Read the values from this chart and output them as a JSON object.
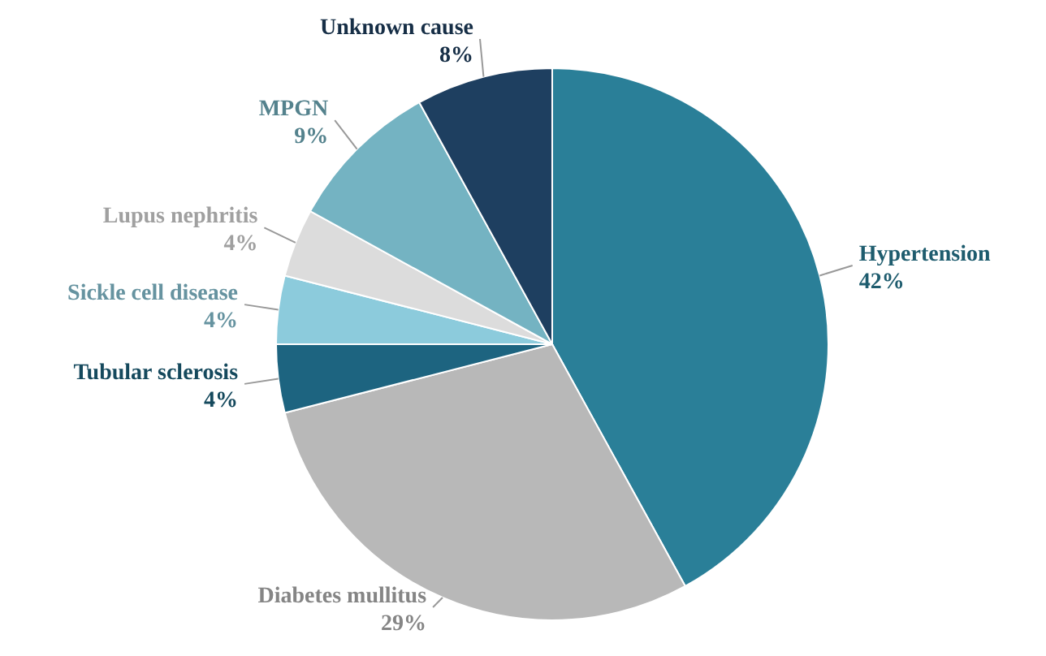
{
  "chart_data": {
    "type": "pie",
    "categories": [
      "Hypertension",
      "Diabetes mullitus",
      "Tubular sclerosis",
      "Sickle cell disease",
      "Lupus nephritis",
      "MPGN",
      "Unknown cause"
    ],
    "values": [
      42,
      29,
      4,
      4,
      4,
      9,
      8
    ],
    "value_labels": [
      "42%",
      "29%",
      "4%",
      "4%",
      "4%",
      "9%",
      "8%"
    ],
    "colors": [
      "#2a7f98",
      "#b8b8b8",
      "#1d6480",
      "#8ccbdc",
      "#dcdcdc",
      "#74b3c2",
      "#1e3f60"
    ]
  }
}
